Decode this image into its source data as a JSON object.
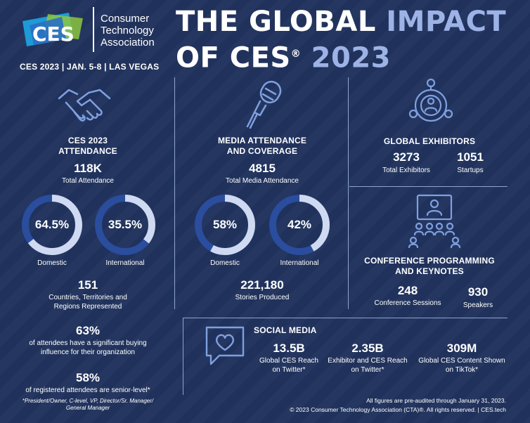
{
  "header": {
    "logo_text": "CES",
    "assoc_lines": [
      "Consumer",
      "Technology",
      "Association"
    ],
    "dateline": "CES 2023  |  JAN. 5-8  |  LAS VEGAS",
    "title_line1_a": "THE GLOBAL ",
    "title_line1_b": "IMPACT",
    "title_line2_a": "OF CES",
    "title_reg": "®",
    "title_line2_b": " 2023"
  },
  "attendance": {
    "heading_line1": "CES 2023",
    "heading_line2": "ATTENDANCE",
    "total_value": "118K",
    "total_label": "Total Attendance",
    "domestic_pct": "64.5%",
    "domestic_fraction": 0.645,
    "domestic_label": "Domestic",
    "international_pct": "35.5%",
    "international_fraction": 0.355,
    "international_label": "International",
    "countries_value": "151",
    "countries_label_line1": "Countries, Territories and",
    "countries_label_line2": "Regions Represented",
    "buying_value": "63%",
    "buying_label_line1": "of attendees have a significant buying",
    "buying_label_line2": "influence for their organization",
    "senior_value": "58%",
    "senior_label": "of registered attendees are senior-level*",
    "footnote_line1": "*President/Owner, C-level, VP, Director/Sr. Manager/",
    "footnote_line2": "General Manager"
  },
  "media": {
    "heading_line1": "MEDIA ATTENDANCE",
    "heading_line2": "AND COVERAGE",
    "total_value": "4815",
    "total_label": "Total Media Attendance",
    "domestic_pct": "58%",
    "domestic_fraction": 0.58,
    "domestic_label": "Domestic",
    "international_pct": "42%",
    "international_fraction": 0.42,
    "international_label": "International",
    "stories_value": "221,180",
    "stories_label": "Stories Produced"
  },
  "exhibitors": {
    "heading": "GLOBAL EXHIBITORS",
    "total_value": "3273",
    "total_label": "Total Exhibitors",
    "startups_value": "1051",
    "startups_label": "Startups"
  },
  "conference": {
    "heading_line1": "CONFERENCE PROGRAMMING",
    "heading_line2": "AND KEYNOTES",
    "sessions_value": "248",
    "sessions_label": "Conference Sessions",
    "speakers_value": "930",
    "speakers_label": "Speakers"
  },
  "social": {
    "heading": "SOCIAL MEDIA",
    "items": [
      {
        "value": "13.5B",
        "line1": "Global CES Reach",
        "line2": "on Twitter*"
      },
      {
        "value": "2.35B",
        "line1": "Exhibitor and CES Reach",
        "line2": "on Twitter*"
      },
      {
        "value": "309M",
        "line1": "Global CES Content Shown",
        "line2": "on TikTok*"
      }
    ]
  },
  "footer": {
    "line1": "All figures are pre-audited through January 31, 2023.",
    "line2": "© 2023 Consumer Technology Association (CTA)®. All rights reserved. | CES.tech"
  },
  "colors": {
    "background": "#20325c",
    "ring_track": "#2a4d9e",
    "ring_fill": "#cfd9f2",
    "highlight": "#9db3e6",
    "logo_blue": "#1e9ad6",
    "logo_green": "#8dc63f"
  }
}
